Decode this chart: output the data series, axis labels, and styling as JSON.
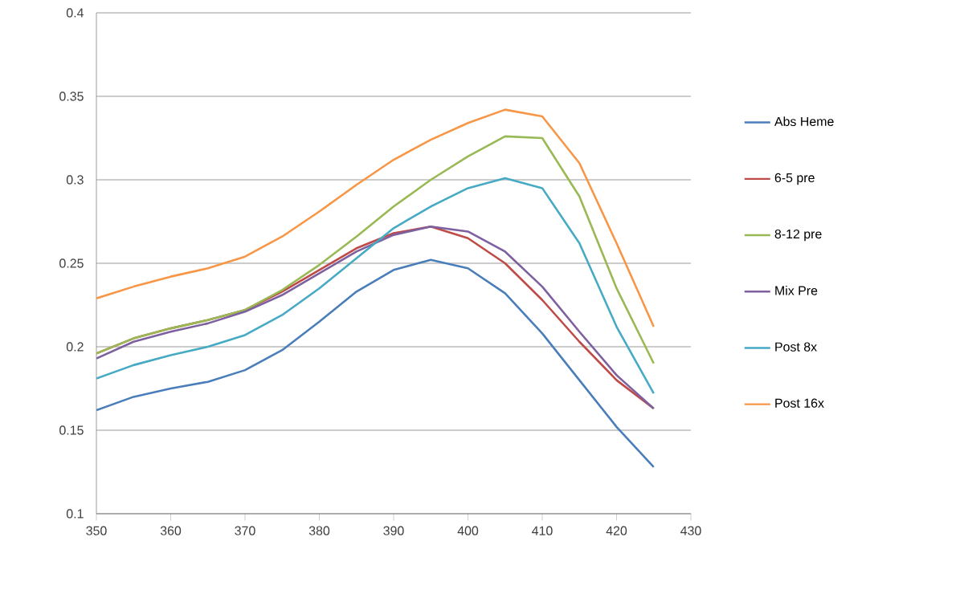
{
  "chart_data": {
    "type": "line",
    "x": [
      350,
      355,
      360,
      365,
      370,
      375,
      380,
      385,
      390,
      395,
      400,
      405,
      410,
      415,
      420,
      425
    ],
    "series": [
      {
        "name": "Abs Heme",
        "color": "#4a7ebb",
        "values": [
          0.162,
          0.17,
          0.175,
          0.179,
          0.186,
          0.198,
          0.215,
          0.233,
          0.246,
          0.252,
          0.247,
          0.232,
          0.208,
          0.18,
          0.152,
          0.128
        ]
      },
      {
        "name": "6-5 pre",
        "color": "#be4b48",
        "values": [
          0.196,
          0.205,
          0.211,
          0.216,
          0.222,
          0.233,
          0.246,
          0.259,
          0.268,
          0.272,
          0.265,
          0.25,
          0.228,
          0.203,
          0.18,
          0.163
        ]
      },
      {
        "name": "8-12 pre",
        "color": "#98b954",
        "values": [
          0.196,
          0.205,
          0.211,
          0.216,
          0.222,
          0.234,
          0.249,
          0.266,
          0.284,
          0.3,
          0.314,
          0.326,
          0.325,
          0.29,
          0.235,
          0.19
        ]
      },
      {
        "name": "Mix Pre",
        "color": "#7d60a0",
        "values": [
          0.193,
          0.203,
          0.209,
          0.214,
          0.221,
          0.231,
          0.244,
          0.257,
          0.267,
          0.272,
          0.269,
          0.257,
          0.236,
          0.209,
          0.183,
          0.163
        ]
      },
      {
        "name": "Post 8x",
        "color": "#46aac5",
        "values": [
          0.181,
          0.189,
          0.195,
          0.2,
          0.207,
          0.219,
          0.235,
          0.253,
          0.271,
          0.284,
          0.295,
          0.301,
          0.295,
          0.262,
          0.212,
          0.172
        ]
      },
      {
        "name": "Post 16x",
        "color": "#f79646",
        "values": [
          0.229,
          0.236,
          0.242,
          0.247,
          0.254,
          0.266,
          0.281,
          0.297,
          0.312,
          0.324,
          0.334,
          0.342,
          0.338,
          0.31,
          0.262,
          0.212
        ]
      }
    ],
    "xlim": [
      350,
      430
    ],
    "xticks": [
      350,
      360,
      370,
      380,
      390,
      400,
      410,
      420,
      430
    ],
    "ylim": [
      0.1,
      0.4
    ],
    "yticks": [
      0.1,
      0.15,
      0.2,
      0.25,
      0.3,
      0.35,
      0.4
    ],
    "grid": "y",
    "legend": "right"
  }
}
